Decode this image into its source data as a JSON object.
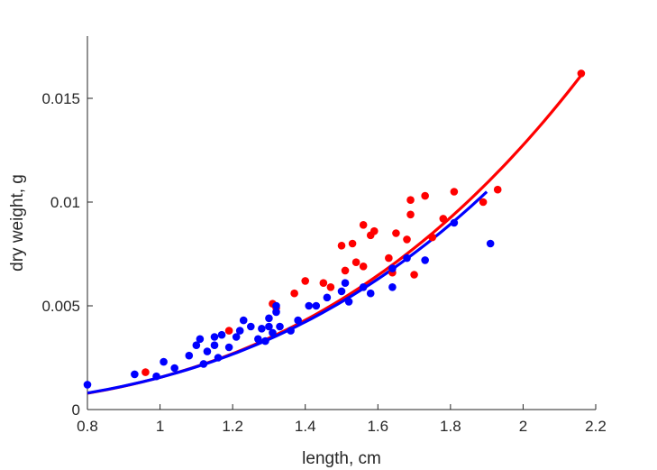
{
  "chart_data": {
    "type": "scatter",
    "xlabel": "length, cm",
    "ylabel": "dry weight, g",
    "xlim": [
      0.8,
      2.2
    ],
    "ylim": [
      0,
      0.018
    ],
    "xticks": [
      0.8,
      1,
      1.2,
      1.4,
      1.6,
      1.8,
      2,
      2.2
    ],
    "xtick_labels": [
      "0.8",
      "1",
      "1.2",
      "1.4",
      "1.6",
      "1.8",
      "2",
      "2.2"
    ],
    "yticks": [
      0,
      0.005,
      0.01,
      0.015
    ],
    "ytick_labels": [
      "0",
      "0.005",
      "0.01",
      "0.015"
    ],
    "grid": false,
    "box": false,
    "series": [
      {
        "color": "#ff0000",
        "points": [
          [
            0.96,
            0.0018
          ],
          [
            1.19,
            0.0038
          ],
          [
            1.31,
            0.0051
          ],
          [
            1.32,
            0.0049
          ],
          [
            1.37,
            0.0056
          ],
          [
            1.4,
            0.0062
          ],
          [
            1.45,
            0.0061
          ],
          [
            1.47,
            0.0059
          ],
          [
            1.5,
            0.0079
          ],
          [
            1.51,
            0.0067
          ],
          [
            1.53,
            0.008
          ],
          [
            1.54,
            0.0071
          ],
          [
            1.56,
            0.0069
          ],
          [
            1.56,
            0.0089
          ],
          [
            1.58,
            0.0084
          ],
          [
            1.59,
            0.0086
          ],
          [
            1.63,
            0.0073
          ],
          [
            1.64,
            0.0066
          ],
          [
            1.65,
            0.0085
          ],
          [
            1.68,
            0.0082
          ],
          [
            1.69,
            0.0094
          ],
          [
            1.69,
            0.0101
          ],
          [
            1.7,
            0.0065
          ],
          [
            1.73,
            0.0103
          ],
          [
            1.75,
            0.0083
          ],
          [
            1.78,
            0.0092
          ],
          [
            1.81,
            0.0105
          ],
          [
            1.89,
            0.01
          ],
          [
            1.93,
            0.0106
          ],
          [
            2.16,
            0.0162
          ]
        ],
        "fit": {
          "a": 0.00155,
          "b": 3.04,
          "xmin": 0.8,
          "xmax": 2.16
        }
      },
      {
        "color": "#0000ff",
        "points": [
          [
            0.8,
            0.0012
          ],
          [
            0.93,
            0.0017
          ],
          [
            0.99,
            0.0016
          ],
          [
            1.01,
            0.0023
          ],
          [
            1.04,
            0.002
          ],
          [
            1.08,
            0.0026
          ],
          [
            1.1,
            0.0031
          ],
          [
            1.11,
            0.0034
          ],
          [
            1.12,
            0.0022
          ],
          [
            1.13,
            0.0028
          ],
          [
            1.15,
            0.0035
          ],
          [
            1.15,
            0.0031
          ],
          [
            1.16,
            0.0025
          ],
          [
            1.17,
            0.0036
          ],
          [
            1.19,
            0.003
          ],
          [
            1.21,
            0.0035
          ],
          [
            1.22,
            0.0038
          ],
          [
            1.23,
            0.0043
          ],
          [
            1.25,
            0.004
          ],
          [
            1.27,
            0.0034
          ],
          [
            1.28,
            0.0039
          ],
          [
            1.29,
            0.0033
          ],
          [
            1.3,
            0.0044
          ],
          [
            1.3,
            0.004
          ],
          [
            1.31,
            0.0037
          ],
          [
            1.32,
            0.0047
          ],
          [
            1.32,
            0.005
          ],
          [
            1.33,
            0.004
          ],
          [
            1.36,
            0.0038
          ],
          [
            1.38,
            0.0043
          ],
          [
            1.41,
            0.005
          ],
          [
            1.43,
            0.005
          ],
          [
            1.46,
            0.0054
          ],
          [
            1.5,
            0.0057
          ],
          [
            1.51,
            0.0061
          ],
          [
            1.52,
            0.0052
          ],
          [
            1.56,
            0.0059
          ],
          [
            1.58,
            0.0056
          ],
          [
            1.64,
            0.0068
          ],
          [
            1.64,
            0.0059
          ],
          [
            1.68,
            0.0073
          ],
          [
            1.73,
            0.0072
          ],
          [
            1.81,
            0.009
          ],
          [
            1.91,
            0.008
          ]
        ],
        "fit": {
          "a": 0.00155,
          "b": 2.98,
          "xmin": 0.8,
          "xmax": 1.9
        }
      }
    ]
  }
}
